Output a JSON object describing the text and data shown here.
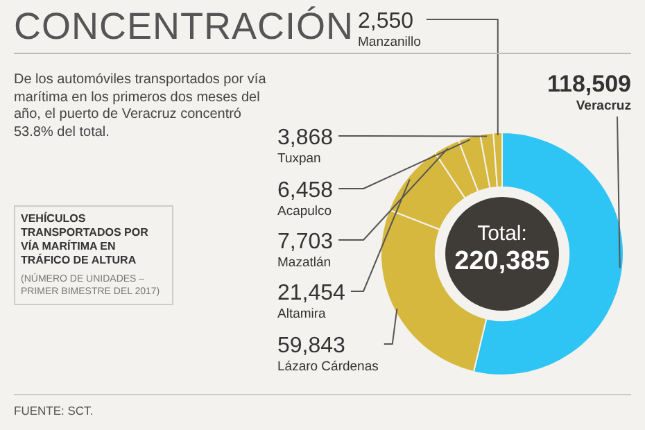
{
  "chart_data": {
    "type": "donut",
    "title": "CONCENTRACIÓN",
    "categories": [
      "Veracruz",
      "Lázaro Cárdenas",
      "Altamira",
      "Mazatlán",
      "Acapulco",
      "Tuxpan",
      "Manzanillo"
    ],
    "values": [
      118509,
      59843,
      21454,
      7703,
      6458,
      3868,
      2550
    ],
    "colors": [
      "#2ec4f3",
      "#d6b83e",
      "#d6b83e",
      "#d6b83e",
      "#d6b83e",
      "#d6b83e",
      "#d6b83e"
    ],
    "value_labels": [
      "118,509",
      "59,843",
      "21,454",
      "7,703",
      "6,458",
      "3,868",
      "2,550"
    ],
    "annotations": [
      "De los automóviles transportados por vía marítima en los primeros dos meses del año, el puerto de Veracruz concentró 53.8% del total.",
      "VEHÍCULOS TRANSPORTADOS POR VÍA MARÍTIMA EN TRÁFICO  DE ALTURA",
      "(NÚMERO DE UNIDADES – PRIMER BIMESTRE DEL 2017)",
      "Total:",
      "220,385",
      "FUENTE: SCT."
    ],
    "legend": false
  }
}
